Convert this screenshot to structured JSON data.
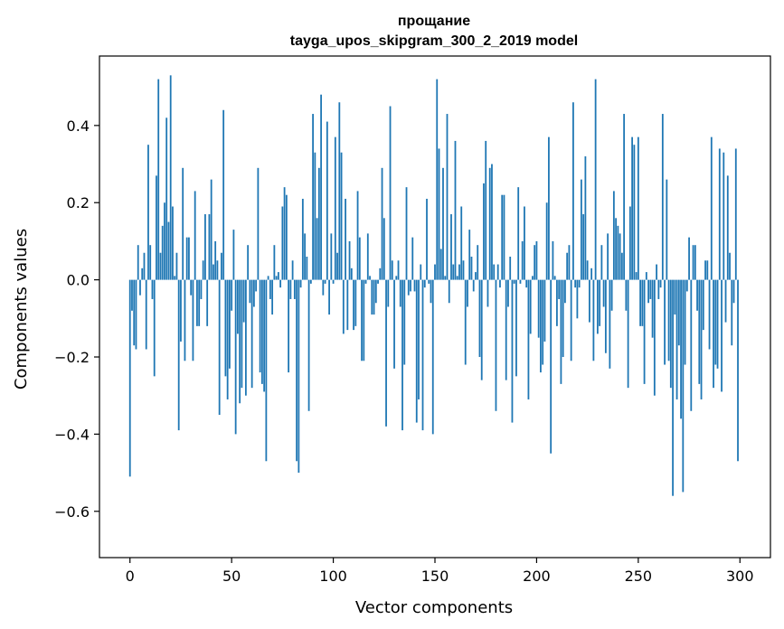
{
  "chart_data": {
    "type": "bar",
    "title": [
      "прощание",
      "tayga_upos_skipgram_300_2_2019 model"
    ],
    "xlabel": "Vector components",
    "ylabel": "Components values",
    "xlim": [
      -15,
      315
    ],
    "ylim": [
      -0.72,
      0.58
    ],
    "xticks": [
      0,
      50,
      100,
      150,
      200,
      250,
      300
    ],
    "xtick_labels": [
      "0",
      "50",
      "100",
      "150",
      "200",
      "250",
      "300"
    ],
    "yticks": [
      -0.6,
      -0.4,
      -0.2,
      0.0,
      0.2,
      0.4
    ],
    "ytick_labels": [
      "−0.6",
      "−0.4",
      "−0.2",
      "0.0",
      "0.2",
      "0.4"
    ],
    "bar_color": "#1f77b4",
    "grid": false,
    "n_bars": 300,
    "x": "0..299",
    "values": [
      -0.51,
      -0.08,
      -0.17,
      -0.18,
      0.09,
      -0.04,
      0.03,
      0.07,
      -0.18,
      0.35,
      0.09,
      -0.05,
      -0.25,
      0.27,
      0.52,
      0.07,
      0.14,
      0.2,
      0.42,
      0.15,
      0.53,
      0.19,
      0.01,
      0.07,
      -0.39,
      -0.16,
      0.29,
      -0.21,
      0.11,
      0.11,
      -0.04,
      -0.21,
      0.23,
      -0.12,
      -0.12,
      -0.05,
      0.05,
      0.17,
      -0.12,
      0.17,
      0.26,
      0.04,
      0.1,
      0.05,
      -0.35,
      0.07,
      0.44,
      -0.25,
      -0.31,
      -0.23,
      -0.08,
      0.13,
      -0.4,
      -0.14,
      -0.32,
      -0.28,
      -0.11,
      -0.3,
      0.09,
      -0.06,
      -0.28,
      -0.07,
      -0.03,
      0.29,
      -0.24,
      -0.27,
      -0.29,
      -0.47,
      0.01,
      -0.05,
      -0.09,
      0.09,
      0.01,
      0.02,
      -0.02,
      0.19,
      0.24,
      0.22,
      -0.24,
      -0.05,
      0.05,
      -0.05,
      -0.47,
      -0.5,
      -0.02,
      0.21,
      0.12,
      0.06,
      -0.34,
      -0.01,
      0.43,
      0.33,
      0.16,
      0.29,
      0.48,
      -0.04,
      -0.01,
      0.41,
      -0.09,
      0.12,
      -0.01,
      0.37,
      0.07,
      0.46,
      0.33,
      -0.14,
      0.21,
      -0.13,
      0.1,
      0.03,
      -0.13,
      -0.12,
      0.23,
      0.11,
      -0.21,
      -0.21,
      -0.01,
      0.12,
      0.01,
      -0.09,
      -0.09,
      -0.06,
      -0.01,
      0.03,
      0.29,
      0.16,
      -0.38,
      -0.07,
      0.45,
      0.05,
      -0.23,
      0.01,
      0.05,
      -0.07,
      -0.39,
      -0.22,
      0.24,
      -0.04,
      -0.03,
      0.11,
      -0.03,
      -0.37,
      -0.31,
      0.04,
      -0.39,
      -0.02,
      0.21,
      -0.01,
      -0.06,
      -0.4,
      0.04,
      0.52,
      0.34,
      0.08,
      0.29,
      0.01,
      0.43,
      -0.06,
      0.17,
      0.04,
      0.36,
      0.01,
      0.04,
      0.19,
      0.05,
      -0.22,
      -0.07,
      0.13,
      0.06,
      -0.03,
      0.02,
      0.09,
      -0.2,
      -0.26,
      0.25,
      0.36,
      -0.07,
      0.29,
      0.3,
      0.04,
      -0.34,
      0.04,
      -0.02,
      0.22,
      0.22,
      -0.26,
      -0.07,
      0.06,
      -0.37,
      -0.01,
      -0.25,
      0.24,
      -0.01,
      0.1,
      0.19,
      -0.02,
      -0.31,
      -0.14,
      0.01,
      0.09,
      0.1,
      -0.15,
      -0.24,
      -0.22,
      -0.16,
      0.2,
      0.37,
      -0.45,
      0.1,
      0.01,
      -0.12,
      -0.05,
      -0.27,
      -0.2,
      -0.06,
      0.07,
      0.09,
      -0.21,
      0.46,
      -0.02,
      -0.1,
      -0.02,
      0.26,
      0.17,
      0.32,
      0.05,
      -0.11,
      0.03,
      -0.21,
      0.52,
      -0.14,
      -0.12,
      0.09,
      -0.07,
      -0.19,
      0.12,
      -0.23,
      -0.08,
      0.23,
      0.16,
      0.14,
      0.12,
      0.07,
      0.43,
      -0.08,
      -0.28,
      0.19,
      0.37,
      0.35,
      0.02,
      0.37,
      -0.12,
      -0.12,
      -0.27,
      0.02,
      -0.06,
      -0.05,
      -0.15,
      -0.3,
      0.04,
      -0.05,
      -0.02,
      0.43,
      -0.22,
      0.26,
      -0.21,
      -0.28,
      -0.56,
      -0.09,
      -0.31,
      -0.17,
      -0.36,
      -0.55,
      -0.22,
      -0.03,
      0.11,
      -0.34,
      0.09,
      0.09,
      -0.08,
      -0.27,
      -0.31,
      -0.13,
      0.05,
      0.05,
      -0.18,
      0.37,
      -0.28,
      -0.22,
      -0.23,
      0.34,
      -0.29,
      0.33,
      -0.11,
      0.27,
      0.07,
      -0.17,
      -0.06,
      0.34,
      -0.47
    ]
  }
}
